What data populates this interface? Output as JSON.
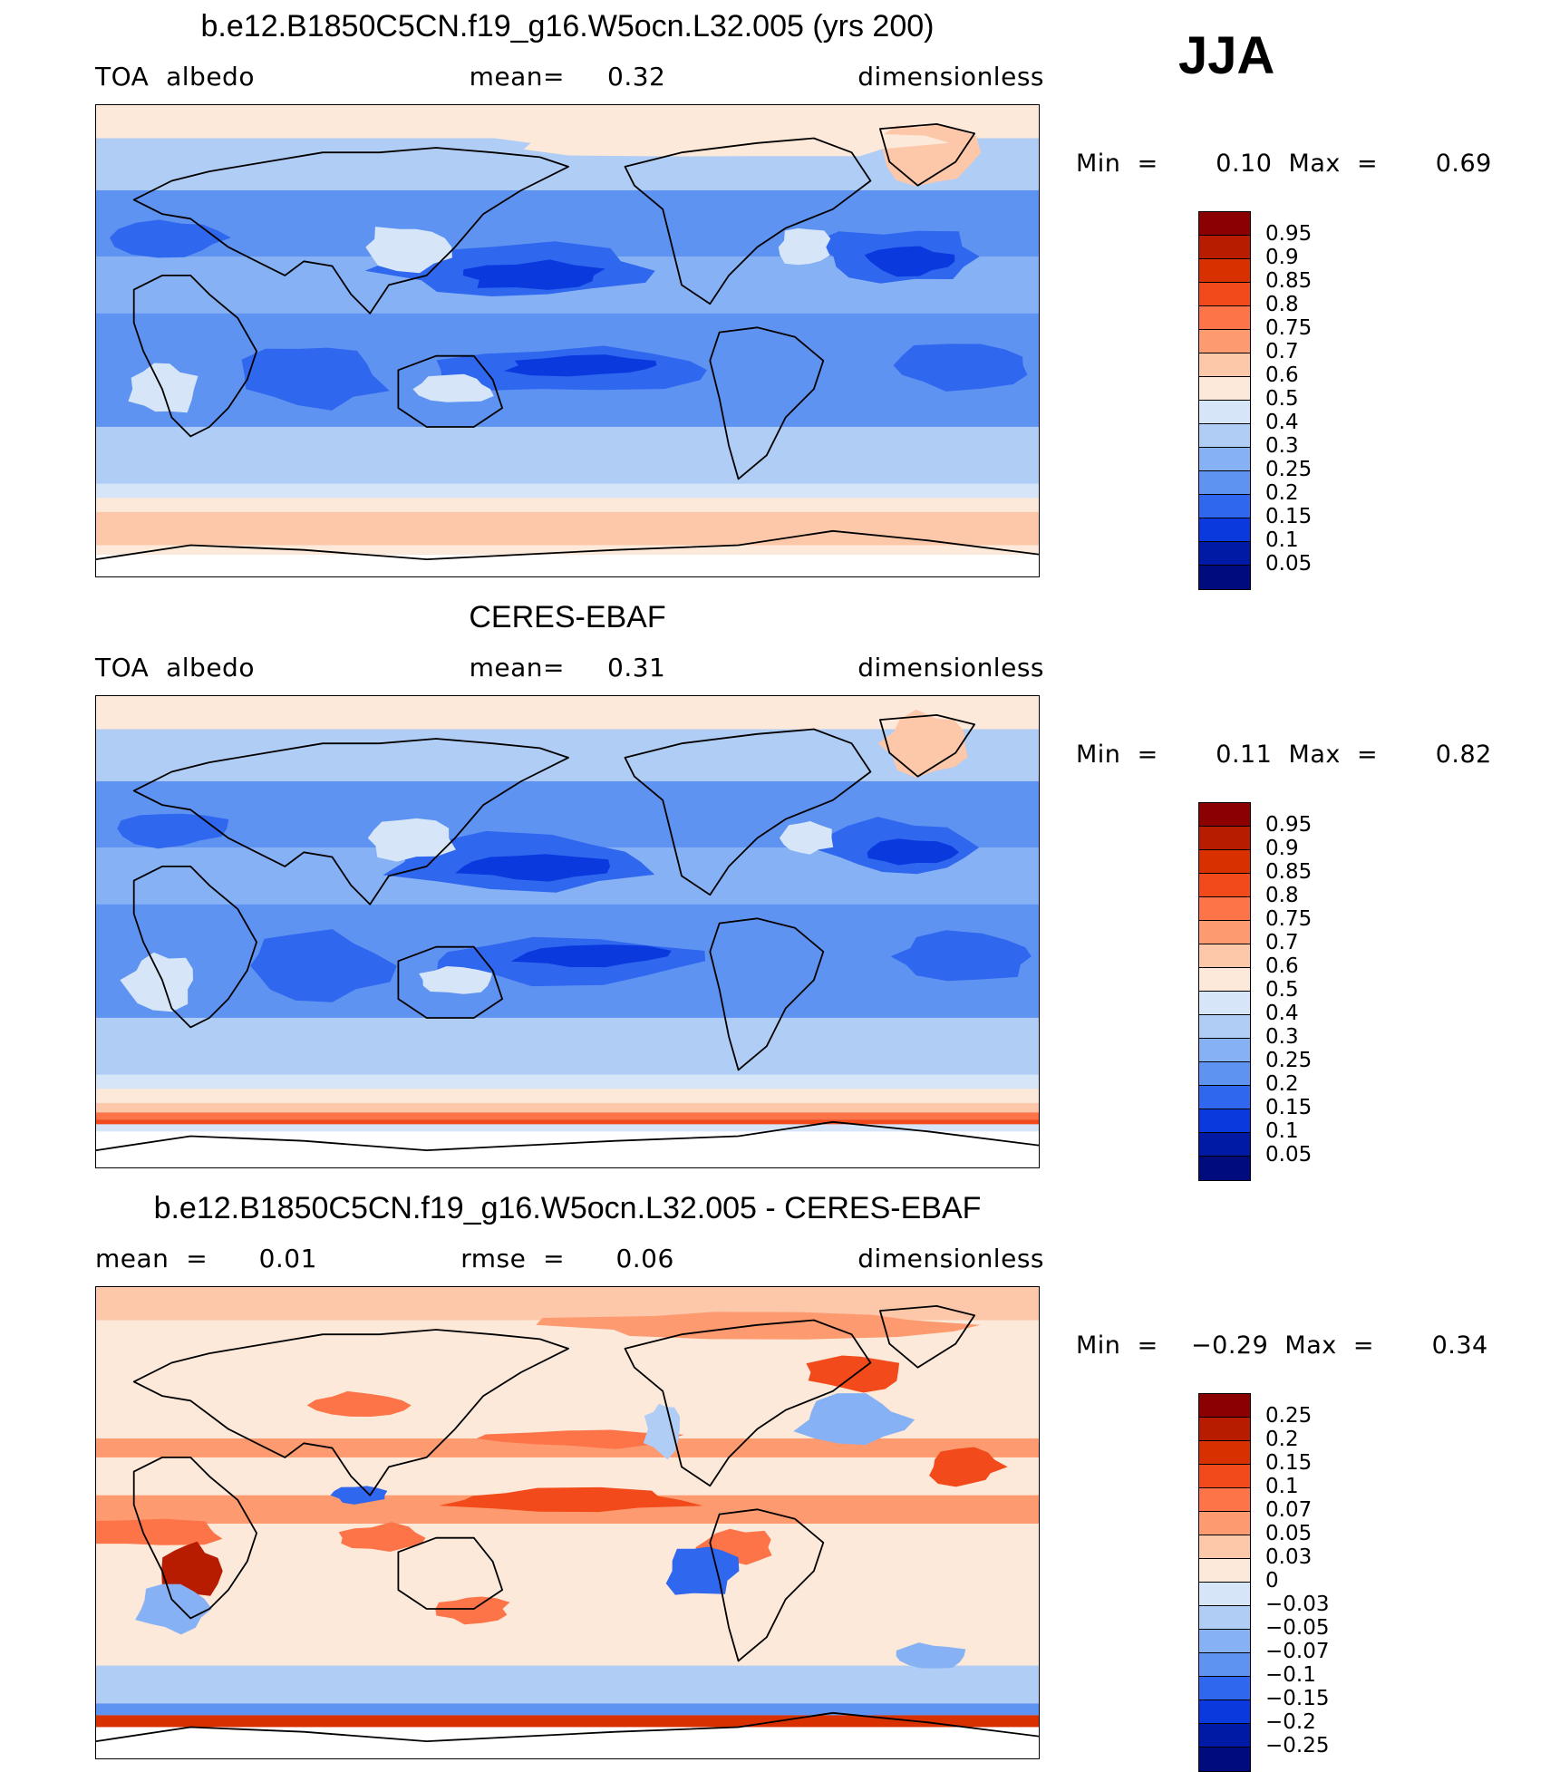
{
  "season": "JJA",
  "panels": [
    {
      "title": "b.e12.B1850C5CN.f19_g16.W5ocn.L32.005 (yrs 200)",
      "left": "TOA  albedo",
      "center": "mean=     0.32",
      "right": "dimensionless",
      "minmax": "Min  =       0.10  Max  =       0.69",
      "type": "abs",
      "colorbar": {
        "labels": [
          "0.95",
          "0.9",
          "0.85",
          "0.8",
          "0.75",
          "0.7",
          "0.6",
          "0.5",
          "0.4",
          "0.3",
          "0.25",
          "0.2",
          "0.15",
          "0.1",
          "0.05"
        ],
        "colors": [
          "#8b0000",
          "#b71c00",
          "#d93000",
          "#f24a1a",
          "#fc7448",
          "#fd9a70",
          "#fdc7aa",
          "#fde9d9",
          "#d6e6f8",
          "#b0cdf5",
          "#86b2f5",
          "#5f93f2",
          "#2f67ef",
          "#0a39de",
          "#001aa6",
          "#000c7c"
        ]
      }
    },
    {
      "title": "CERES-EBAF",
      "left": "TOA  albedo",
      "center": "mean=     0.31",
      "right": "dimensionless",
      "minmax": "Min  =       0.11  Max  =       0.82",
      "type": "obs",
      "colorbar": {
        "labels": [
          "0.95",
          "0.9",
          "0.85",
          "0.8",
          "0.75",
          "0.7",
          "0.6",
          "0.5",
          "0.4",
          "0.3",
          "0.25",
          "0.2",
          "0.15",
          "0.1",
          "0.05"
        ],
        "colors": [
          "#8b0000",
          "#b71c00",
          "#d93000",
          "#f24a1a",
          "#fc7448",
          "#fd9a70",
          "#fdc7aa",
          "#fde9d9",
          "#d6e6f8",
          "#b0cdf5",
          "#86b2f5",
          "#5f93f2",
          "#2f67ef",
          "#0a39de",
          "#001aa6",
          "#000c7c"
        ]
      }
    },
    {
      "title": "b.e12.B1850C5CN.f19_g16.W5ocn.L32.005 - CERES-EBAF",
      "left": "mean  =      0.01",
      "center": "rmse  =      0.06",
      "right": "dimensionless",
      "minmax": "Min  =    −0.29  Max  =       0.34",
      "type": "diff",
      "colorbar": {
        "labels": [
          "0.25",
          "0.2",
          "0.15",
          "0.1",
          "0.07",
          "0.05",
          "0.03",
          "0",
          "−0.03",
          "−0.05",
          "−0.07",
          "−0.1",
          "−0.15",
          "−0.2",
          "−0.25"
        ],
        "colors": [
          "#8b0000",
          "#b71c00",
          "#d93000",
          "#f24a1a",
          "#fc7448",
          "#fd9a70",
          "#fdc7aa",
          "#fde9d9",
          "#d6e6f8",
          "#b0cdf5",
          "#86b2f5",
          "#5f93f2",
          "#2f67ef",
          "#0a39de",
          "#001aa6",
          "#000c7c"
        ]
      }
    }
  ]
}
